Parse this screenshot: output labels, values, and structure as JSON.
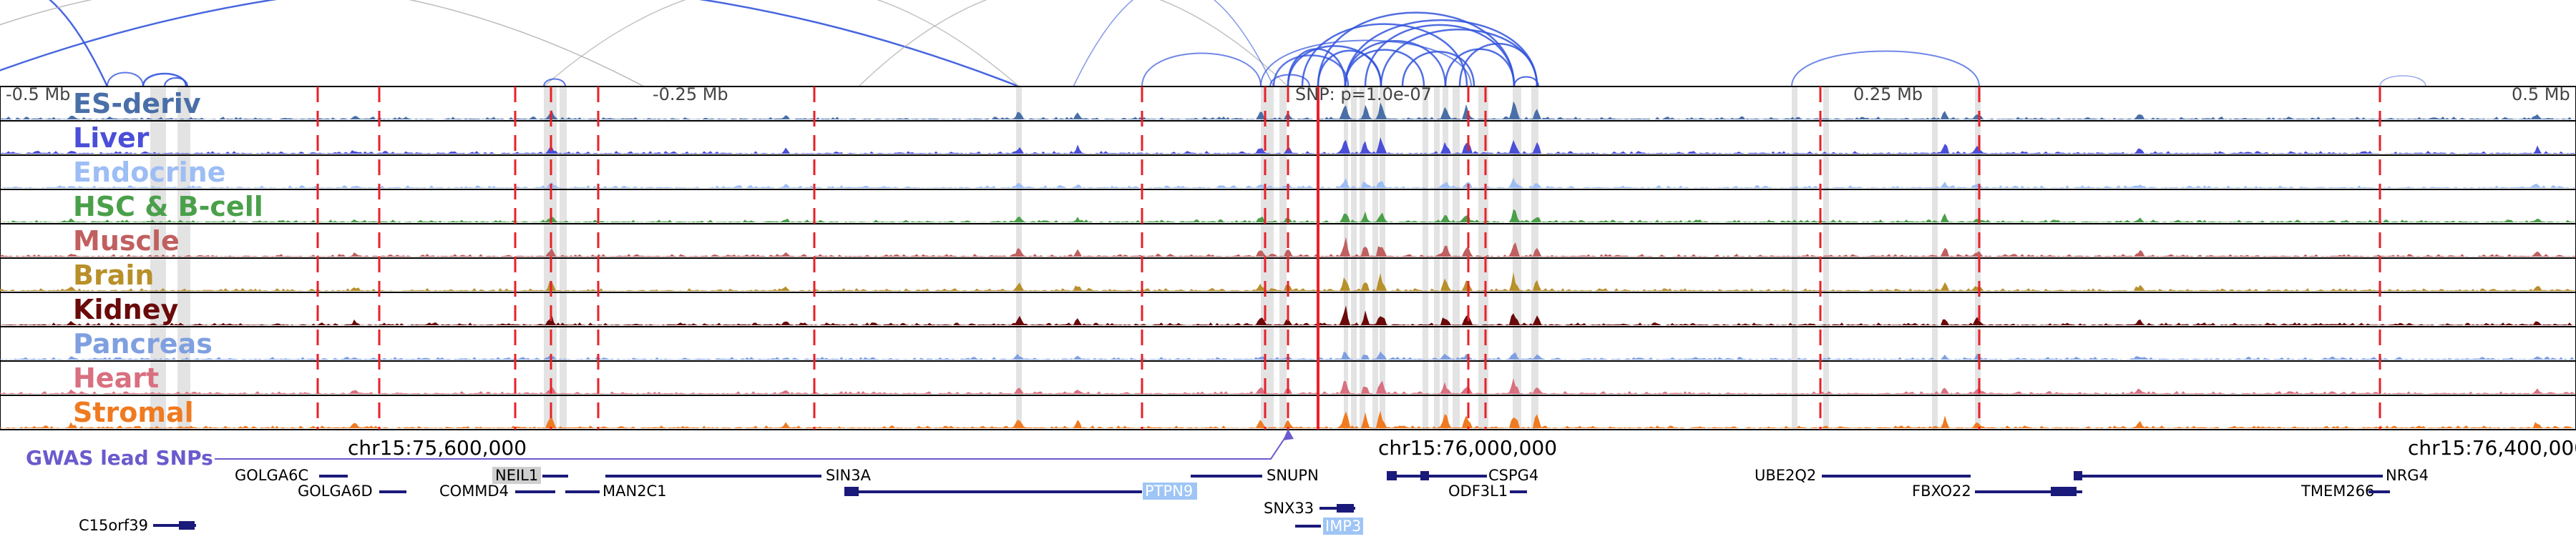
{
  "colors": {
    "background": "#ffffff",
    "track_border": "#000000",
    "snp_line": "#e8202a",
    "highlight": "#d9d9d9",
    "gene": "#1a1a7a",
    "gwas": "#6a5acd",
    "arc_blue": "#3355dd",
    "arc_gray": "#aaaaaa",
    "gene_highlight_gray": "#cfcfcf",
    "gene_highlight_blue": "#9ec5f5"
  },
  "scale_labels": [
    "-0.5 Mb",
    "-0.25 Mb",
    "0.25 Mb",
    "0.5 Mb"
  ],
  "snp_label": "SNP: p=1.0e-07",
  "tracks": [
    {
      "name": "ES-deriv",
      "color": "#4a6fa8"
    },
    {
      "name": "Liver",
      "color": "#4b4fd8"
    },
    {
      "name": "Endocrine",
      "color": "#9dbdf5"
    },
    {
      "name": "HSC & B-cell",
      "color": "#4aa04a"
    },
    {
      "name": "Muscle",
      "color": "#c06060"
    },
    {
      "name": "Brain",
      "color": "#b8902a"
    },
    {
      "name": "Kidney",
      "color": "#6a0a0a"
    },
    {
      "name": "Pancreas",
      "color": "#7f9fe0"
    },
    {
      "name": "Heart",
      "color": "#d87080"
    },
    {
      "name": "Stromal",
      "color": "#f07a20"
    }
  ],
  "gwas_label": "GWAS lead SNPs",
  "coordinates": [
    "chr15:75,600,000",
    "chr15:76,000,000",
    "chr15:76,400,000"
  ],
  "genes": [
    {
      "name": "GOLGA6C",
      "highlight": ""
    },
    {
      "name": "GOLGA6D",
      "highlight": ""
    },
    {
      "name": "NEIL1",
      "highlight": "gray"
    },
    {
      "name": "COMMD4",
      "highlight": ""
    },
    {
      "name": "MAN2C1",
      "highlight": ""
    },
    {
      "name": "SIN3A",
      "highlight": ""
    },
    {
      "name": "PTPN9",
      "highlight": "blue"
    },
    {
      "name": "SNUPN",
      "highlight": ""
    },
    {
      "name": "SNX33",
      "highlight": ""
    },
    {
      "name": "IMP3",
      "highlight": "blue"
    },
    {
      "name": "CSPG4",
      "highlight": ""
    },
    {
      "name": "ODF3L1",
      "highlight": ""
    },
    {
      "name": "UBE2Q2",
      "highlight": ""
    },
    {
      "name": "FBXO22",
      "highlight": ""
    },
    {
      "name": "NRG4",
      "highlight": ""
    },
    {
      "name": "TMEM266",
      "highlight": ""
    },
    {
      "name": "C15orf39",
      "highlight": ""
    }
  ]
}
